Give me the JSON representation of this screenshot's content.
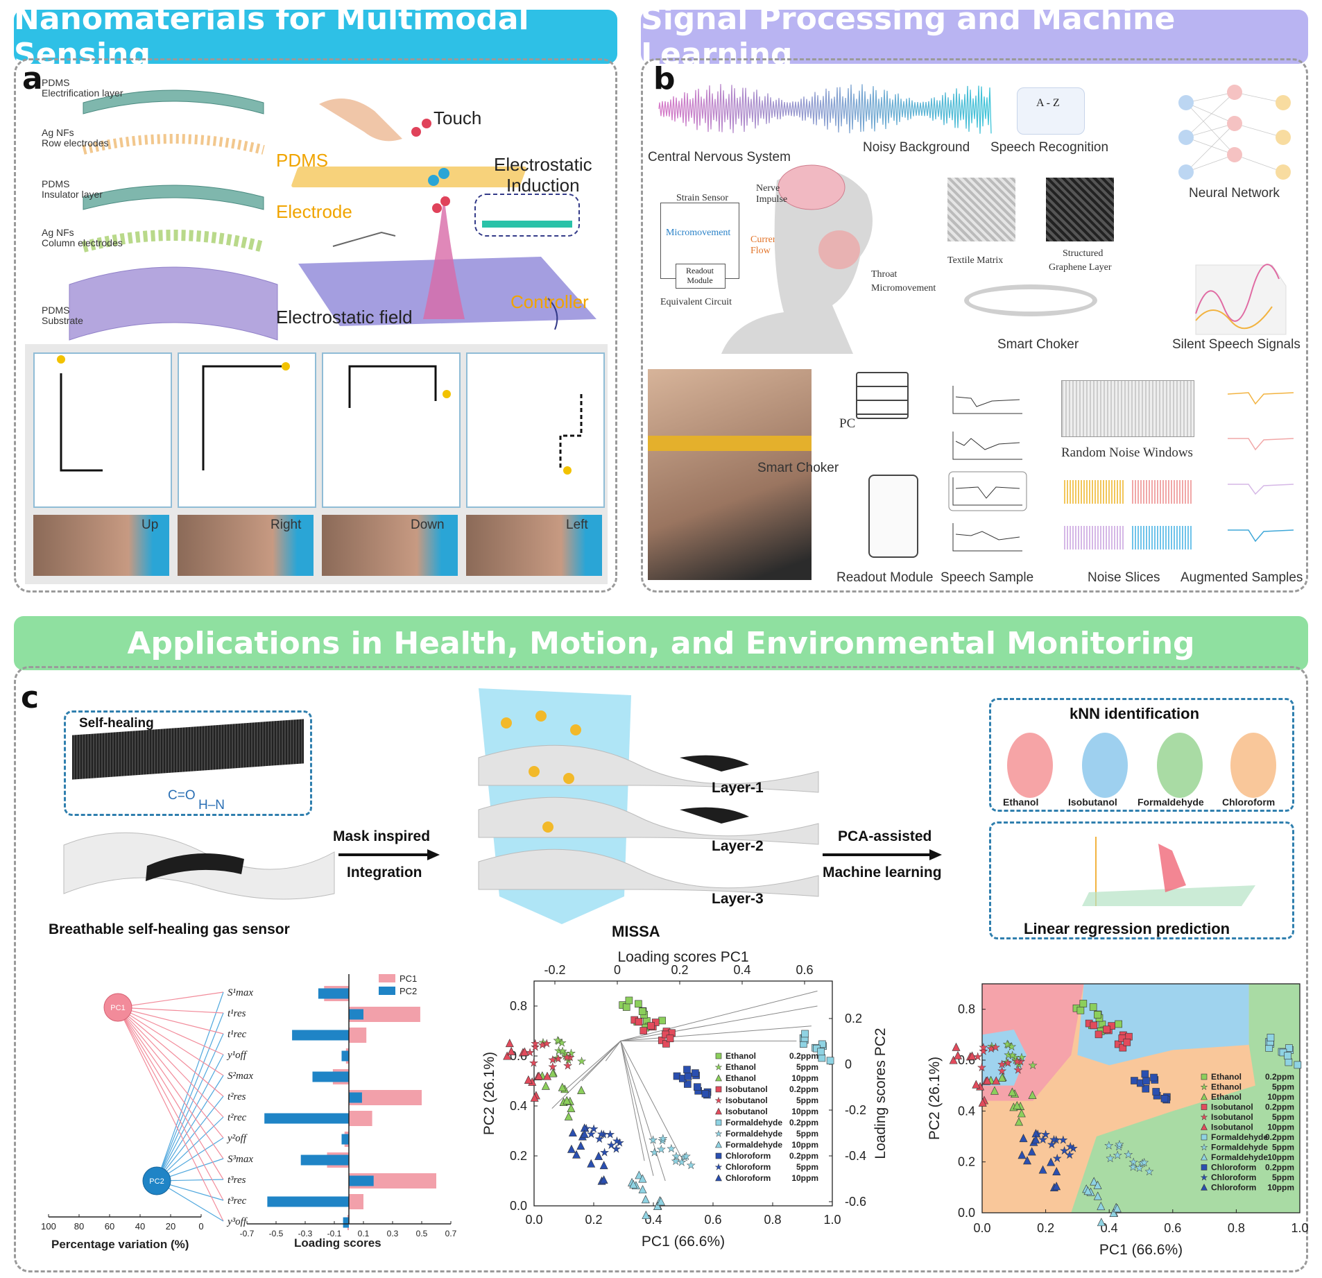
{
  "banners": {
    "a": "Nanomaterials for Multimodal Sensing",
    "b": "Signal Processing and Machine Learning",
    "c": "Applications in Health, Motion, and Environmental Monitoring"
  },
  "panel_labels": {
    "a": "a",
    "b": "b",
    "c": "c"
  },
  "colors": {
    "banner_a": "#2ec0e6",
    "banner_b": "#b9b4f2",
    "banner_c": "#8fe0a0",
    "pc1": "#f28b9a",
    "pc2": "#1f84c6"
  },
  "panel_a": {
    "layers": [
      {
        "line1": "PDMS",
        "line2": "Electrification layer"
      },
      {
        "line1": "Ag NFs",
        "line2": "Row electrodes"
      },
      {
        "line1": "PDMS",
        "line2": "Insulator layer"
      },
      {
        "line1": "Ag NFs",
        "line2": "Column electrodes"
      },
      {
        "line1": "PDMS",
        "line2": "Substrate"
      }
    ],
    "touch": "Touch",
    "pdms": "PDMS",
    "electrode": "Electrode",
    "induction_1": "Electrostatic",
    "induction_2": "Induction",
    "controller": "Controller",
    "field": "Electrostatic field",
    "directions": [
      "Up",
      "Right",
      "Down",
      "Left"
    ]
  },
  "panel_b": {
    "cns": "Central Nervous System",
    "noisy": "Noisy Background",
    "speech_rec": "Speech Recognition",
    "az": "A - Z",
    "neural": "Neural Network",
    "strain": "Strain Sensor",
    "micromovement": "Micromovement",
    "readout_module_small": "Readout Module",
    "current": "Current",
    "flow": "Flow",
    "equivalent": "Equivalent Circuit",
    "nerve": "Nerve",
    "impulse": "Impulse",
    "throat": "Throat",
    "throat2": "Micromovement",
    "textile": "Textile Matrix",
    "graphene1": "Structured",
    "graphene2": "Graphene Layer",
    "choker": "Smart Choker",
    "silent": "Silent Speech Signals",
    "pc": "PC",
    "smart_choker2": "Smart Choker",
    "random_noise": "Random Noise Windows",
    "readout": "Readout Module",
    "speech_sample": "Speech Sample",
    "noise_slices": "Noise Slices",
    "augmented": "Augmented Samples"
  },
  "panel_c": {
    "self_healing": "Self-healing",
    "co": "C=O",
    "hn": "H–N",
    "gas_sensor": "Breathable self-healing gas sensor",
    "mask1": "Mask inspired",
    "mask2": "Integration",
    "layers": [
      "Layer-1",
      "Layer-2",
      "Layer-3"
    ],
    "missa": "MISSA",
    "pca1": "PCA-assisted",
    "pca2": "Machine learning",
    "knn": "kNN identification",
    "analytes": [
      "Ethanol",
      "Isobutanol",
      "Formaldehyde",
      "Chloroform"
    ],
    "linreg": "Linear regression prediction",
    "pc1_node": "PC1",
    "pc2_node": "PC2",
    "features": [
      "S¹max",
      "t¹res",
      "t¹rec",
      "y¹off",
      "S²max",
      "t²res",
      "t²rec",
      "y²off",
      "S³max",
      "t³res",
      "t³rec",
      "y³off"
    ]
  },
  "chart_data": [
    {
      "type": "line",
      "title": "",
      "xlabel": "Percentage variation (%)",
      "ylabel": "",
      "x_ticks": [
        "100",
        "80",
        "60",
        "40",
        "20",
        "0"
      ],
      "nodes": [
        "PC1",
        "PC2"
      ],
      "categories": [
        "S¹max",
        "t¹res",
        "t¹rec",
        "y¹off",
        "S²max",
        "t²res",
        "t²rec",
        "y²off",
        "S³max",
        "t³res",
        "t³rec",
        "y³off"
      ]
    },
    {
      "type": "bar",
      "title": "",
      "xlabel": "Loading scores",
      "ylabel": "",
      "xlim": [
        -0.7,
        0.7
      ],
      "x_ticks": [
        "-0.7",
        "-0.5",
        "-0.3",
        "-0.1",
        "0.1",
        "0.3",
        "0.5",
        "0.7"
      ],
      "legend": "top-right",
      "categories": [
        "S¹max",
        "t¹res",
        "t¹rec",
        "y¹off",
        "S²max",
        "t²res",
        "t²rec",
        "y²off",
        "S³max",
        "t³res",
        "t³rec",
        "y³off"
      ],
      "series": [
        {
          "name": "PC1",
          "values": [
            -0.17,
            0.49,
            0.12,
            -0.02,
            -0.11,
            0.5,
            0.16,
            -0.03,
            -0.15,
            0.6,
            0.1,
            -0.01
          ]
        },
        {
          "name": "PC2",
          "values": [
            -0.21,
            0.1,
            -0.39,
            -0.05,
            -0.25,
            0.09,
            -0.58,
            -0.05,
            -0.33,
            0.17,
            -0.56,
            -0.04
          ]
        }
      ]
    },
    {
      "type": "scatter",
      "title": "",
      "xlabel": "PC1 (66.6%)",
      "ylabel": "PC2 (26.1%)",
      "xlim": [
        0.0,
        1.0
      ],
      "ylim": [
        0.0,
        0.9
      ],
      "x_ticks": [
        "0.0",
        "0.2",
        "0.4",
        "0.6",
        "0.8",
        "1.0"
      ],
      "y_ticks": [
        "0.0",
        "0.2",
        "0.4",
        "0.6",
        "0.8"
      ],
      "top_axis_label": "Loading scores PC1",
      "top_ticks": [
        "-0.2",
        "0",
        "0.2",
        "0.4",
        "0.6"
      ],
      "right_axis_label": "Loading scores PC2",
      "right_ticks": [
        "0.2",
        "0",
        "-0.2",
        "-0.4",
        "-0.6"
      ],
      "legend": "right",
      "series": [
        {
          "name": "Ethanol 0.2ppm",
          "centroid": [
            0.4,
            0.8
          ]
        },
        {
          "name": "Ethanol 5ppm",
          "centroid": [
            0.13,
            0.65
          ]
        },
        {
          "name": "Ethanol 10ppm",
          "centroid": [
            0.13,
            0.53
          ]
        },
        {
          "name": "Isobutanol 0.2ppm",
          "centroid": [
            0.44,
            0.73
          ]
        },
        {
          "name": "Isobutanol 5ppm",
          "centroid": [
            0.09,
            0.63
          ]
        },
        {
          "name": "Isobutanol 10ppm",
          "centroid": [
            0.01,
            0.6
          ]
        },
        {
          "name": "Formaldehyde 0.2ppm",
          "centroid": [
            0.96,
            0.67
          ]
        },
        {
          "name": "Formaldehyde 5ppm",
          "centroid": [
            0.5,
            0.24
          ]
        },
        {
          "name": "Formaldehyde 10ppm",
          "centroid": [
            0.41,
            0.1
          ]
        },
        {
          "name": "Chloroform 0.2ppm",
          "centroid": [
            0.58,
            0.52
          ]
        },
        {
          "name": "Chloroform 5ppm",
          "centroid": [
            0.27,
            0.29
          ]
        },
        {
          "name": "Chloroform 10ppm",
          "centroid": [
            0.21,
            0.26
          ]
        }
      ],
      "legend_entries": [
        {
          "name": "Ethanol",
          "conc": "0.2ppm"
        },
        {
          "name": "Ethanol",
          "conc": "5ppm"
        },
        {
          "name": "Ethanol",
          "conc": "10ppm"
        },
        {
          "name": "Isobutanol",
          "conc": "0.2ppm"
        },
        {
          "name": "Isobutanol",
          "conc": "5ppm"
        },
        {
          "name": "Isobutanol",
          "conc": "10ppm"
        },
        {
          "name": "Formaldehyde",
          "conc": "0.2ppm"
        },
        {
          "name": "Formaldehyde",
          "conc": "5ppm"
        },
        {
          "name": "Formaldehyde",
          "conc": "10ppm"
        },
        {
          "name": "Chloroform",
          "conc": "0.2ppm"
        },
        {
          "name": "Chloroform",
          "conc": "5ppm"
        },
        {
          "name": "Chloroform",
          "conc": "10ppm"
        }
      ]
    },
    {
      "type": "scatter",
      "title": "",
      "xlabel": "PC1 (66.6%)",
      "ylabel": "PC2 (26.1%)",
      "xlim": [
        0.0,
        1.0
      ],
      "ylim": [
        0.0,
        0.9
      ],
      "x_ticks": [
        "0.0",
        "0.2",
        "0.4",
        "0.6",
        "0.8",
        "1.0"
      ],
      "y_ticks": [
        "0.0",
        "0.2",
        "0.4",
        "0.6",
        "0.8"
      ],
      "legend": "right",
      "legend_entries": [
        {
          "name": "Ethanol",
          "conc": "0.2ppm"
        },
        {
          "name": "Ethanol",
          "conc": "5ppm"
        },
        {
          "name": "Ethanol",
          "conc": "10ppm"
        },
        {
          "name": "Isobutanol",
          "conc": "0.2ppm"
        },
        {
          "name": "Isobutanol",
          "conc": "5ppm"
        },
        {
          "name": "Isobutanol",
          "conc": "10ppm"
        },
        {
          "name": "Formaldehyde",
          "conc": "0.2ppm"
        },
        {
          "name": "Formaldehyde",
          "conc": "5ppm"
        },
        {
          "name": "Formaldehyde",
          "conc": "10ppm"
        },
        {
          "name": "Chloroform",
          "conc": "0.2ppm"
        },
        {
          "name": "Chloroform",
          "conc": "5ppm"
        },
        {
          "name": "Chloroform",
          "conc": "10ppm"
        }
      ]
    }
  ]
}
